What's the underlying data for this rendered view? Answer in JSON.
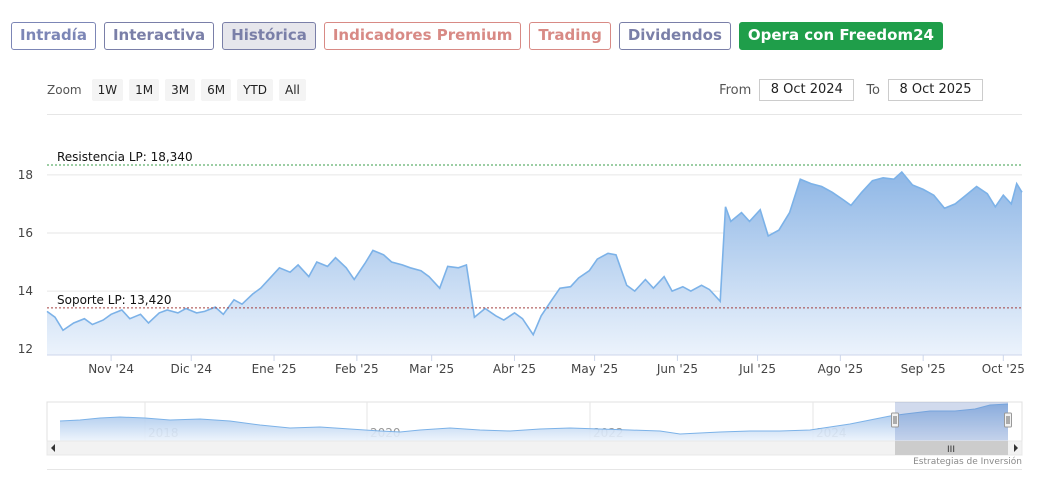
{
  "tabs": [
    {
      "label": "Intradía",
      "color": "#7c86b6",
      "active": false
    },
    {
      "label": "Interactiva",
      "color": "#7a7fa8",
      "active": false
    },
    {
      "label": "Histórica",
      "color": "#7a7fa8",
      "active": true
    },
    {
      "label": "Indicadores Premium",
      "color": "#d88a85",
      "active": false
    },
    {
      "label": "Trading",
      "color": "#d88a85",
      "active": false
    },
    {
      "label": "Dividendos",
      "color": "#7a7fa8",
      "active": false
    },
    {
      "label": "Opera con Freedom24",
      "color": "#1f9e4a",
      "active": false,
      "cta": true
    }
  ],
  "zoom": {
    "label": "Zoom",
    "buttons": [
      "1W",
      "1M",
      "3M",
      "6M",
      "YTD",
      "All"
    ]
  },
  "range": {
    "from_label": "From",
    "from_value": "8 Oct 2024",
    "to_label": "To",
    "to_value": "8 Oct 2025"
  },
  "credit": "Estrategias de Inversión",
  "chart_data": {
    "type": "area",
    "title": "",
    "xlabel": "",
    "ylabel": "",
    "ylim": [
      11.8,
      19.2
    ],
    "yticks": [
      12,
      14,
      16,
      18
    ],
    "xticks": [
      {
        "label": "Nov '24",
        "x": "2024-11-01"
      },
      {
        "label": "Dic '24",
        "x": "2024-12-01"
      },
      {
        "label": "Ene '25",
        "x": "2025-01-01"
      },
      {
        "label": "Feb '25",
        "x": "2025-02-01"
      },
      {
        "label": "Mar '25",
        "x": "2025-03-01"
      },
      {
        "label": "Abr '25",
        "x": "2025-04-01"
      },
      {
        "label": "May '25",
        "x": "2025-05-01"
      },
      {
        "label": "Jun '25",
        "x": "2025-06-01"
      },
      {
        "label": "Jul '25",
        "x": "2025-07-01"
      },
      {
        "label": "Ago '25",
        "x": "2025-08-01"
      },
      {
        "label": "Sep '25",
        "x": "2025-09-01"
      },
      {
        "label": "Oct '25",
        "x": "2025-10-01"
      }
    ],
    "xlim": [
      "2024-10-08",
      "2025-10-08"
    ],
    "series": [
      {
        "values": [
          [
            "2024-10-08",
            13.3
          ],
          [
            "2024-10-11",
            13.1
          ],
          [
            "2024-10-14",
            12.65
          ],
          [
            "2024-10-18",
            12.9
          ],
          [
            "2024-10-22",
            13.05
          ],
          [
            "2024-10-25",
            12.85
          ],
          [
            "2024-10-29",
            13.0
          ],
          [
            "2024-11-01",
            13.2
          ],
          [
            "2024-11-05",
            13.35
          ],
          [
            "2024-11-08",
            13.05
          ],
          [
            "2024-11-12",
            13.2
          ],
          [
            "2024-11-15",
            12.9
          ],
          [
            "2024-11-19",
            13.25
          ],
          [
            "2024-11-22",
            13.35
          ],
          [
            "2024-11-26",
            13.25
          ],
          [
            "2024-11-29",
            13.4
          ],
          [
            "2024-12-03",
            13.25
          ],
          [
            "2024-12-06",
            13.3
          ],
          [
            "2024-12-10",
            13.45
          ],
          [
            "2024-12-13",
            13.2
          ],
          [
            "2024-12-17",
            13.7
          ],
          [
            "2024-12-20",
            13.55
          ],
          [
            "2024-12-24",
            13.9
          ],
          [
            "2024-12-27",
            14.1
          ],
          [
            "2024-12-31",
            14.5
          ],
          [
            "2025-01-03",
            14.8
          ],
          [
            "2025-01-07",
            14.65
          ],
          [
            "2025-01-10",
            14.9
          ],
          [
            "2025-01-14",
            14.5
          ],
          [
            "2025-01-17",
            15.0
          ],
          [
            "2025-01-21",
            14.85
          ],
          [
            "2025-01-24",
            15.15
          ],
          [
            "2025-01-28",
            14.8
          ],
          [
            "2025-01-31",
            14.4
          ],
          [
            "2025-02-04",
            14.95
          ],
          [
            "2025-02-07",
            15.4
          ],
          [
            "2025-02-11",
            15.25
          ],
          [
            "2025-02-14",
            15.0
          ],
          [
            "2025-02-18",
            14.9
          ],
          [
            "2025-02-21",
            14.8
          ],
          [
            "2025-02-25",
            14.7
          ],
          [
            "2025-02-28",
            14.5
          ],
          [
            "2025-03-04",
            14.1
          ],
          [
            "2025-03-07",
            14.85
          ],
          [
            "2025-03-11",
            14.8
          ],
          [
            "2025-03-14",
            14.9
          ],
          [
            "2025-03-17",
            13.1
          ],
          [
            "2025-03-21",
            13.4
          ],
          [
            "2025-03-25",
            13.15
          ],
          [
            "2025-03-28",
            13.0
          ],
          [
            "2025-04-01",
            13.25
          ],
          [
            "2025-04-04",
            13.05
          ],
          [
            "2025-04-08",
            12.5
          ],
          [
            "2025-04-11",
            13.15
          ],
          [
            "2025-04-15",
            13.7
          ],
          [
            "2025-04-18",
            14.1
          ],
          [
            "2025-04-22",
            14.15
          ],
          [
            "2025-04-25",
            14.45
          ],
          [
            "2025-04-29",
            14.7
          ],
          [
            "2025-05-02",
            15.1
          ],
          [
            "2025-05-06",
            15.3
          ],
          [
            "2025-05-09",
            15.25
          ],
          [
            "2025-05-13",
            14.2
          ],
          [
            "2025-05-16",
            14.0
          ],
          [
            "2025-05-20",
            14.4
          ],
          [
            "2025-05-23",
            14.1
          ],
          [
            "2025-05-27",
            14.5
          ],
          [
            "2025-05-30",
            14.0
          ],
          [
            "2025-06-03",
            14.15
          ],
          [
            "2025-06-06",
            14.0
          ],
          [
            "2025-06-10",
            14.2
          ],
          [
            "2025-06-13",
            14.05
          ],
          [
            "2025-06-17",
            13.65
          ],
          [
            "2025-06-19",
            16.9
          ],
          [
            "2025-06-21",
            16.4
          ],
          [
            "2025-06-25",
            16.7
          ],
          [
            "2025-06-28",
            16.4
          ],
          [
            "2025-07-02",
            16.8
          ],
          [
            "2025-07-05",
            15.9
          ],
          [
            "2025-07-09",
            16.1
          ],
          [
            "2025-07-13",
            16.7
          ],
          [
            "2025-07-17",
            17.85
          ],
          [
            "2025-07-21",
            17.7
          ],
          [
            "2025-07-25",
            17.6
          ],
          [
            "2025-07-29",
            17.4
          ],
          [
            "2025-08-02",
            17.15
          ],
          [
            "2025-08-05",
            16.95
          ],
          [
            "2025-08-09",
            17.4
          ],
          [
            "2025-08-13",
            17.8
          ],
          [
            "2025-08-17",
            17.9
          ],
          [
            "2025-08-21",
            17.85
          ],
          [
            "2025-08-24",
            18.1
          ],
          [
            "2025-08-28",
            17.65
          ],
          [
            "2025-09-01",
            17.5
          ],
          [
            "2025-09-05",
            17.3
          ],
          [
            "2025-09-09",
            16.85
          ],
          [
            "2025-09-13",
            17.0
          ],
          [
            "2025-09-17",
            17.3
          ],
          [
            "2025-09-21",
            17.6
          ],
          [
            "2025-09-25",
            17.35
          ],
          [
            "2025-09-28",
            16.9
          ],
          [
            "2025-10-01",
            17.3
          ],
          [
            "2025-10-04",
            17.0
          ],
          [
            "2025-10-06",
            17.7
          ],
          [
            "2025-10-08",
            17.4
          ]
        ]
      }
    ],
    "plot_lines": [
      {
        "label": "Resistencia LP: 18,340",
        "value": 18.34,
        "color": "#3a9e4a"
      },
      {
        "label": "Soporte LP: 13,420",
        "value": 13.42,
        "color": "#a34040"
      }
    ],
    "navigator": {
      "labels": [
        "2018",
        "2020",
        "2022",
        "2024"
      ],
      "scrollbar_grip": "III"
    },
    "colors": {
      "line": "#7cb2e8",
      "fill_top": "#8fb7e6",
      "fill_bottom": "#ecf3fc"
    }
  }
}
